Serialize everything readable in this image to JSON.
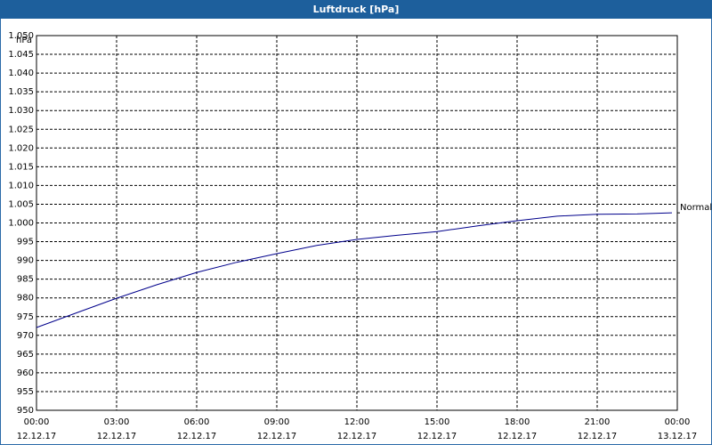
{
  "chart_data": {
    "type": "line",
    "title": "Luftdruck [hPa]",
    "ylabel": "hPa",
    "x": [
      0,
      1.5,
      3,
      4.5,
      6,
      7.5,
      9,
      10.5,
      12,
      13.5,
      15,
      16.5,
      18,
      19.5,
      21,
      22.5,
      23.8
    ],
    "series": [
      {
        "name": "Normal",
        "color": "#00008b",
        "values": [
          972.1,
          976,
          979.9,
          983.5,
          986.8,
          989.5,
          991.8,
          994,
          995.6,
          996.7,
          997.7,
          999.2,
          1000.6,
          1001.8,
          1002.3,
          1002.4,
          1002.7
        ]
      }
    ],
    "xlim": [
      0,
      24
    ],
    "xticks": [
      {
        "value": 0,
        "label": "00:00"
      },
      {
        "value": 3,
        "label": "03:00"
      },
      {
        "value": 6,
        "label": "06:00"
      },
      {
        "value": 9,
        "label": "09:00"
      },
      {
        "value": 12,
        "label": "12:00"
      },
      {
        "value": 15,
        "label": "15:00"
      },
      {
        "value": 18,
        "label": "18:00"
      },
      {
        "value": 21,
        "label": "21:00"
      },
      {
        "value": 24,
        "label": "00:00"
      }
    ],
    "xtick_dates": [
      "12.12.17",
      "12.12.17",
      "12.12.17",
      "12.12.17",
      "12.12.17",
      "12.12.17",
      "12.12.17",
      "12.12.17",
      "13.12.17"
    ],
    "ylim": [
      950,
      1050
    ],
    "yticks": [
      950,
      955,
      960,
      965,
      970,
      975,
      980,
      985,
      990,
      995,
      {
        "value": 1000,
        "label": "1.000"
      },
      {
        "value": 1005,
        "label": "1.005"
      },
      {
        "value": 1010,
        "label": "1.010"
      },
      {
        "value": 1015,
        "label": "1.015"
      },
      {
        "value": 1020,
        "label": "1.020"
      },
      {
        "value": 1025,
        "label": "1.025"
      },
      {
        "value": 1030,
        "label": "1.030"
      },
      {
        "value": 1035,
        "label": "1.035"
      },
      {
        "value": 1040,
        "label": "1.040"
      },
      {
        "value": 1045,
        "label": "1.045"
      },
      {
        "value": 1050,
        "label": "1.050"
      }
    ],
    "grid": true
  }
}
